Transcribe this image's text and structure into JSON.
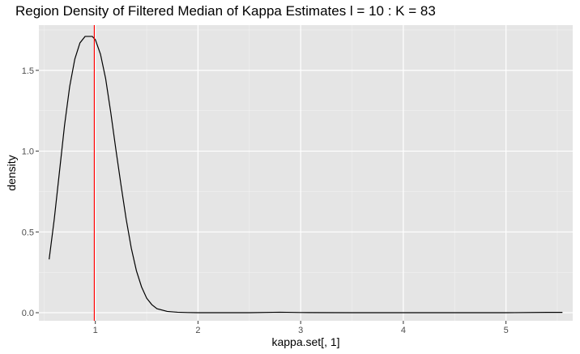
{
  "chart_data": {
    "type": "line",
    "title": "Region Density of Filtered Median of Kappa Estimates l = 10 : K = 83",
    "xlabel": "kappa.set[, 1]",
    "ylabel": "density",
    "xlim": [
      0.45,
      5.65
    ],
    "ylim": [
      -0.05,
      1.78
    ],
    "x_ticks": [
      1,
      2,
      3,
      4,
      5
    ],
    "x_tick_labels": [
      "1",
      "2",
      "3",
      "4",
      "5"
    ],
    "y_ticks": [
      0.0,
      0.5,
      1.0,
      1.5
    ],
    "y_tick_labels": [
      "0.0",
      "0.5",
      "1.0",
      "1.5"
    ],
    "grid": true,
    "background": "#e5e5e5",
    "vline": {
      "x": 0.99,
      "color": "#ff0000"
    },
    "series": [
      {
        "color": "#000000",
        "x": [
          0.55,
          0.6,
          0.65,
          0.7,
          0.75,
          0.8,
          0.85,
          0.9,
          0.95,
          0.97,
          1.0,
          1.05,
          1.1,
          1.15,
          1.2,
          1.25,
          1.3,
          1.35,
          1.4,
          1.45,
          1.5,
          1.55,
          1.6,
          1.7,
          1.8,
          1.9,
          2.0,
          2.2,
          2.5,
          2.8,
          3.0,
          3.5,
          4.0,
          4.5,
          5.0,
          5.4,
          5.55
        ],
        "y": [
          0.33,
          0.58,
          0.87,
          1.16,
          1.4,
          1.57,
          1.67,
          1.71,
          1.71,
          1.71,
          1.69,
          1.6,
          1.45,
          1.24,
          1.01,
          0.79,
          0.58,
          0.4,
          0.26,
          0.16,
          0.09,
          0.05,
          0.025,
          0.008,
          0.003,
          0.001,
          0.0,
          0.0,
          0.0,
          0.003,
          0.001,
          0.0,
          0.0,
          0.0,
          0.0,
          0.002,
          0.002
        ]
      }
    ]
  }
}
